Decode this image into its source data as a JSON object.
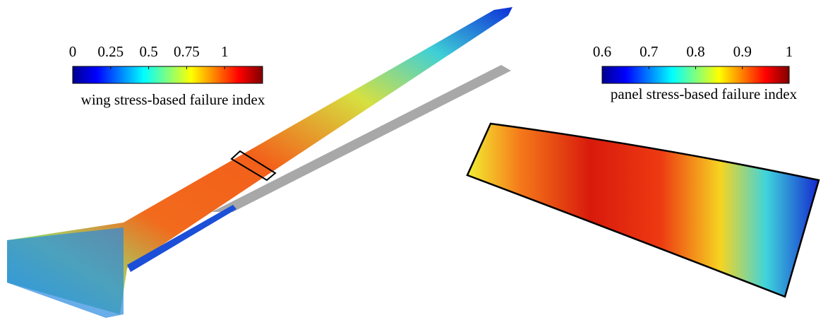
{
  "wing_colorbar": {
    "label": "wing stress-based failure index",
    "lim": [
      0,
      1.25
    ],
    "ticks": [
      0,
      0.25,
      0.5,
      0.75,
      1
    ]
  },
  "panel_colorbar": {
    "label": "panel stress-based failure index",
    "lim": [
      0.6,
      1
    ],
    "ticks": [
      0.6,
      0.7,
      0.8,
      0.9,
      1
    ]
  }
}
